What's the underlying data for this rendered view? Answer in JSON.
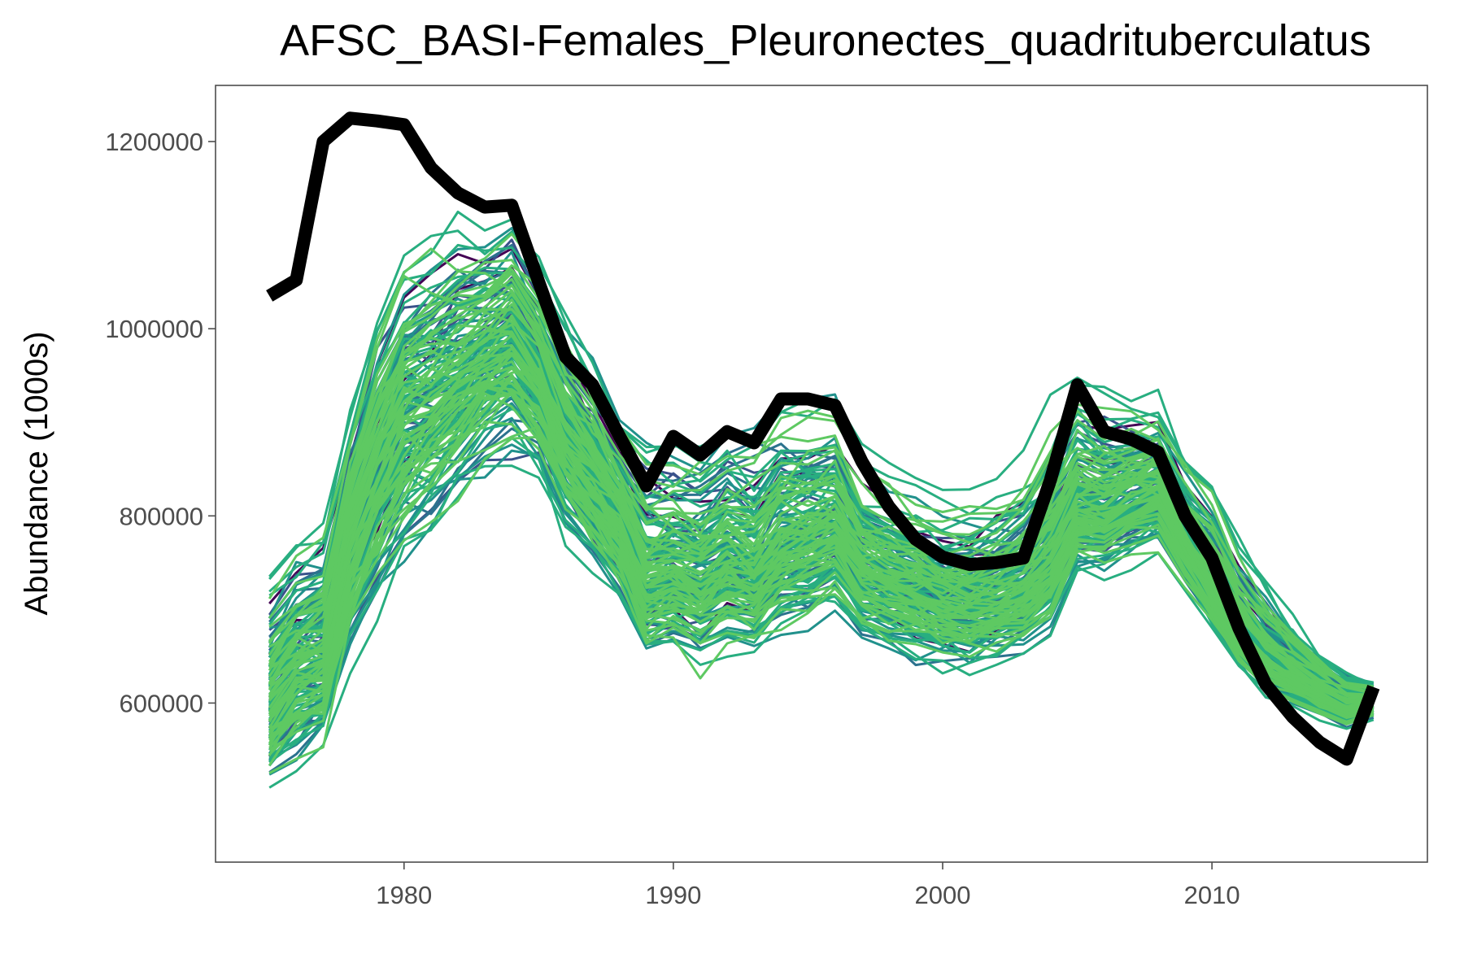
{
  "chart_data": {
    "type": "line",
    "title": "AFSC_BASI-Females_Pleuronectes_quadrituberculatus",
    "xlabel": "",
    "ylabel": "Abundance (1000s)",
    "xlim": [
      1973,
      2018
    ],
    "ylim": [
      430000,
      1260000
    ],
    "x_ticks": [
      1980,
      1990,
      2000,
      2010
    ],
    "y_ticks": [
      600000,
      800000,
      1000000,
      1200000
    ],
    "grid": false,
    "legend": "none",
    "x": [
      1975,
      1976,
      1977,
      1978,
      1979,
      1980,
      1981,
      1982,
      1983,
      1984,
      1985,
      1986,
      1987,
      1988,
      1989,
      1990,
      1991,
      1992,
      1993,
      1994,
      1995,
      1996,
      1997,
      1998,
      1999,
      2000,
      2001,
      2002,
      2003,
      2004,
      2005,
      2006,
      2007,
      2008,
      2009,
      2010,
      2011,
      2012,
      2013,
      2014,
      2015,
      2016
    ],
    "observed": {
      "color": "#000000",
      "values": [
        1035000,
        1052000,
        1200000,
        1225000,
        1222000,
        1218000,
        1172000,
        1145000,
        1130000,
        1132000,
        1050000,
        970000,
        940000,
        885000,
        832000,
        885000,
        865000,
        890000,
        878000,
        925000,
        925000,
        918000,
        858000,
        810000,
        775000,
        756000,
        748000,
        750000,
        755000,
        838000,
        940000,
        890000,
        882000,
        868000,
        800000,
        755000,
        680000,
        620000,
        585000,
        558000,
        540000,
        617000
      ]
    },
    "simulations": {
      "count": 160,
      "palette": [
        "#440154",
        "#3b528b",
        "#2c728e",
        "#21918c",
        "#28ae80",
        "#5ec962"
      ],
      "median": [
        600000,
        640000,
        650000,
        780000,
        860000,
        920000,
        930000,
        950000,
        975000,
        990000,
        950000,
        880000,
        840000,
        800000,
        730000,
        740000,
        730000,
        750000,
        740000,
        770000,
        775000,
        790000,
        745000,
        735000,
        725000,
        710000,
        705000,
        715000,
        725000,
        750000,
        810000,
        805000,
        820000,
        830000,
        770000,
        720000,
        670000,
        640000,
        625000,
        610000,
        595000,
        600000
      ],
      "lower": [
        480000,
        490000,
        510000,
        590000,
        640000,
        690000,
        730000,
        770000,
        800000,
        820000,
        800000,
        740000,
        710000,
        675000,
        620000,
        625000,
        605000,
        620000,
        620000,
        640000,
        650000,
        665000,
        640000,
        630000,
        620000,
        615000,
        610000,
        620000,
        630000,
        650000,
        720000,
        725000,
        735000,
        745000,
        710000,
        670000,
        630000,
        600000,
        590000,
        578000,
        568000,
        580000
      ],
      "upper": [
        760000,
        800000,
        820000,
        930000,
        1030000,
        1100000,
        1125000,
        1140000,
        1130000,
        1140000,
        1090000,
        1030000,
        980000,
        930000,
        910000,
        900000,
        895000,
        915000,
        915000,
        940000,
        950000,
        940000,
        880000,
        860000,
        850000,
        840000,
        840000,
        850000,
        870000,
        930000,
        965000,
        950000,
        935000,
        935000,
        880000,
        860000,
        800000,
        750000,
        700000,
        662000,
        640000,
        625000
      ]
    }
  }
}
